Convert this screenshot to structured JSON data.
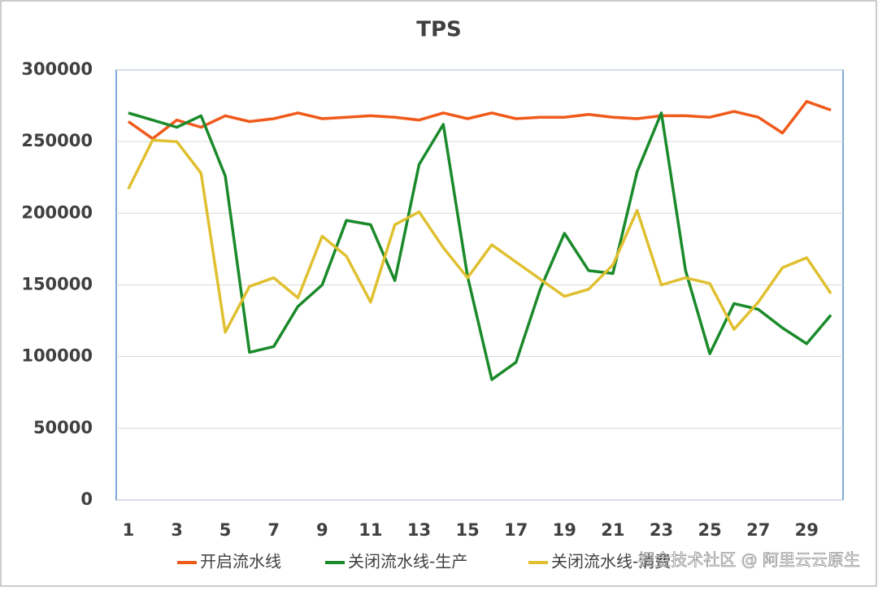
{
  "chart_data": {
    "type": "line",
    "title": "TPS",
    "categories": [
      1,
      null,
      3,
      null,
      5,
      null,
      7,
      null,
      9,
      null,
      11,
      null,
      13,
      null,
      15,
      null,
      17,
      null,
      19,
      null,
      21,
      null,
      23,
      null,
      25,
      null,
      27,
      null,
      29,
      null
    ],
    "series": [
      {
        "name": "开启流水线",
        "color": "#f05a1a",
        "values": [
          264000,
          252000,
          265000,
          260000,
          268000,
          264000,
          266000,
          270000,
          266000,
          267000,
          268000,
          267000,
          265000,
          270000,
          266000,
          270000,
          266000,
          267000,
          267000,
          269000,
          267000,
          266000,
          268000,
          268000,
          267000,
          271000,
          267000,
          256000,
          278000,
          272000
        ]
      },
      {
        "name": "关闭流水线-生产",
        "color": "#1a8a2a",
        "values": [
          270000,
          265000,
          260000,
          268000,
          226000,
          103000,
          107000,
          135000,
          150000,
          195000,
          192000,
          153000,
          234000,
          262000,
          156000,
          84000,
          96000,
          147000,
          186000,
          160000,
          158000,
          229000,
          270000,
          160000,
          102000,
          137000,
          133000,
          120000,
          109000,
          129000
        ]
      },
      {
        "name": "关闭流水线-消费",
        "color": "#e0c030",
        "values": [
          217000,
          251000,
          250000,
          228000,
          117000,
          149000,
          155000,
          141000,
          184000,
          170000,
          138000,
          192000,
          201000,
          176000,
          155000,
          178000,
          166000,
          154000,
          142000,
          147000,
          164000,
          202000,
          150000,
          155000,
          151000,
          119000,
          138000,
          162000,
          169000,
          144000
        ]
      }
    ],
    "ylim": [
      0,
      300000
    ],
    "yticks": [
      0,
      50000,
      100000,
      150000,
      200000,
      250000,
      300000
    ],
    "grid": true,
    "watermark": "掘金技术社区 @ 阿里云云原生"
  }
}
